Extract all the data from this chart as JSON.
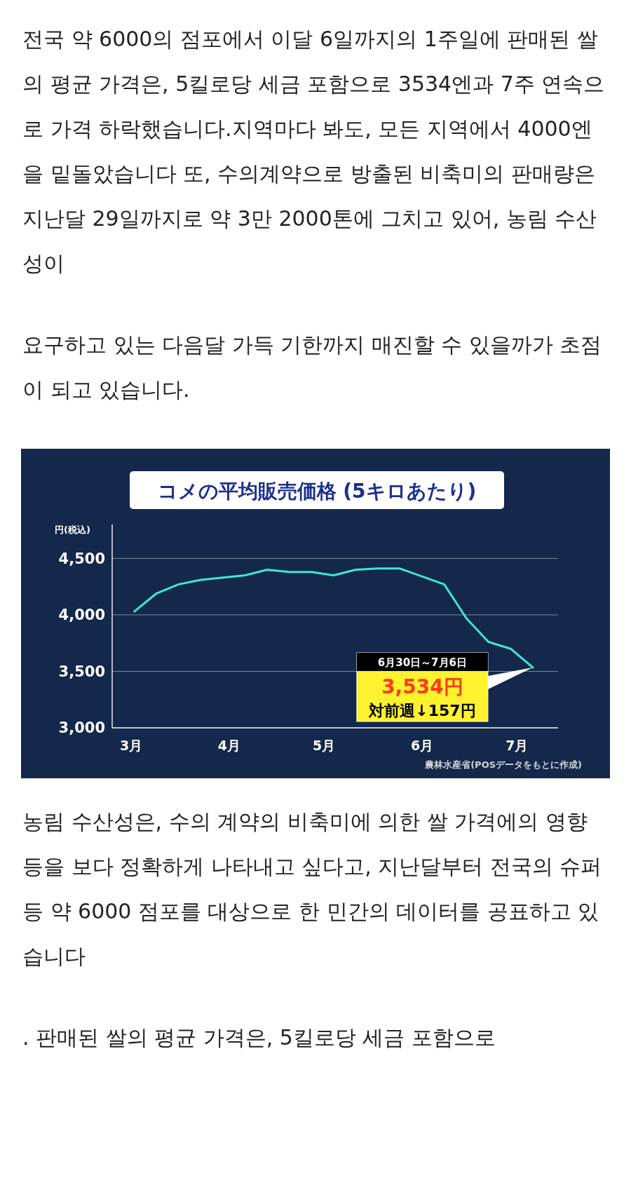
{
  "chart_data": {
    "type": "line",
    "title": "コメの平均販売価格 (5キロあたり)",
    "ylabel": "円(税込)",
    "x": [
      "--03-02",
      "--03-09",
      "--03-16",
      "--03-23",
      "--03-30",
      "--04-06",
      "--04-13",
      "--04-20",
      "--04-27",
      "--05-04",
      "--05-11",
      "--05-18",
      "--05-25",
      "--06-01",
      "--06-08",
      "--06-15",
      "--06-22",
      "--06-29",
      "--07-06"
    ],
    "series": [
      {
        "color": "#3ee6d4",
        "values": [
          4030,
          4190,
          4270,
          4310,
          4330,
          4350,
          4400,
          4380,
          4380,
          4350,
          4400,
          4410,
          4410,
          4340,
          4270,
          3970,
          3760,
          3700,
          3534
        ]
      }
    ],
    "xlim": [
      "--02-23",
      "--07-14"
    ],
    "xticks": [
      {
        "value": "--03-01",
        "label": "3月"
      },
      {
        "value": "--04-01",
        "label": "4月"
      },
      {
        "value": "--05-01",
        "label": "5月"
      },
      {
        "value": "--06-01",
        "label": "6月"
      },
      {
        "value": "--07-01",
        "label": "7月"
      }
    ],
    "ylim": [
      3000,
      4800
    ],
    "yticks": [
      {
        "value": 3000,
        "label": "3,000"
      },
      {
        "value": 3500,
        "label": "3,500"
      },
      {
        "value": 4000,
        "label": "4,000"
      },
      {
        "value": 4500,
        "label": "4,500"
      }
    ],
    "grid": "y",
    "annotations": [
      "전국 약 6000의 점포에서 이달 6일까지의 1주일에 판매된 쌀의 평균 가격은, 5킬로당 세금 포함으로 3534엔과 7주 연속으로 가격 하락했습니다.지역마다 봐도, 모든 지역에서 4000엔을 밑돌았습니다 또, 수의계약으로 방출된 비축미의 판매량은 지난달 29일까지로 약 3만 2000톤에 그치고 있어, 농림 수산성이",
      "요구하고 있는 다음달 가득 기한까지 매진할 수 있을까가 초점이 되고 있습니다.",
      "농림 수산성은, 수의 계약의 비축미에 의한 쌀 가격에의 영향 등을 보다 정확하게 나타내고 싶다고, 지난달부터 전국의 슈퍼 등 약 6000 점포를 대상으로 한 민간의 데이터를 공표하고 있습니다",
      ". 판매된 쌀의 평균 가격은, 5킬로당 세금 포함으로",
      "農林水産省(POSデータをもとに作成)",
      "6月30日～7月6日",
      {
        "text": "3,534円",
        "x": "--07-06",
        "y": 3534
      },
      {
        "text": "対前週↓157円",
        "x": "--07-06",
        "y": 3534
      }
    ]
  }
}
